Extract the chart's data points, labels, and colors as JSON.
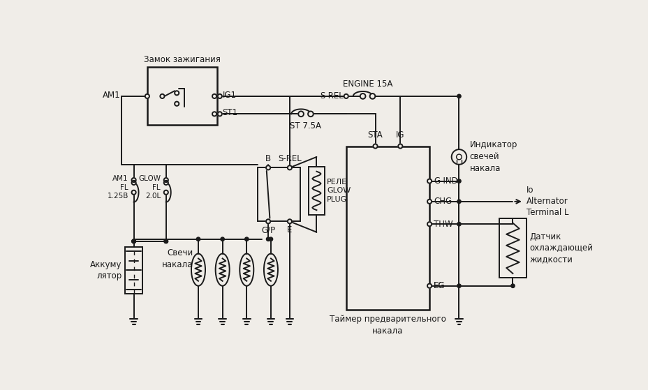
{
  "bg_color": "#f0ede8",
  "line_color": "#1a1a1a",
  "labels": {
    "zamok": "Замок зажигания",
    "am1_top": "AM1",
    "ig1": "IG1",
    "st1": "ST1",
    "engine15a": "ENGINE 15A",
    "st75a": "ST 7.5A",
    "am1_fl125": "AM1\nFL\n1.25B",
    "glow_fl20": "GLOW\nFL\n2.0L",
    "b_label": "B",
    "srel_label": "S-REL",
    "gp_label": "G/P",
    "e_label": "E",
    "rele_glow": "РЕЛЕ\nGLOW\nPLUG",
    "sveci": "Свечи\nнакала",
    "akkum": "Аккуму\nлятор",
    "sta": "STA",
    "ig": "IG",
    "srel_conn": "S-REL",
    "gind": "G-IND",
    "chg": "CHG",
    "thw": "THW",
    "eg": "EG",
    "taimer": "Таймер предварительного\nнакала",
    "indikator": "Индикатор\nсвечей\nнакала",
    "to_alt": "Io\nAlternator\nTerminal L",
    "datchik": "Датчик\nохлаждающей\nжидкости"
  }
}
